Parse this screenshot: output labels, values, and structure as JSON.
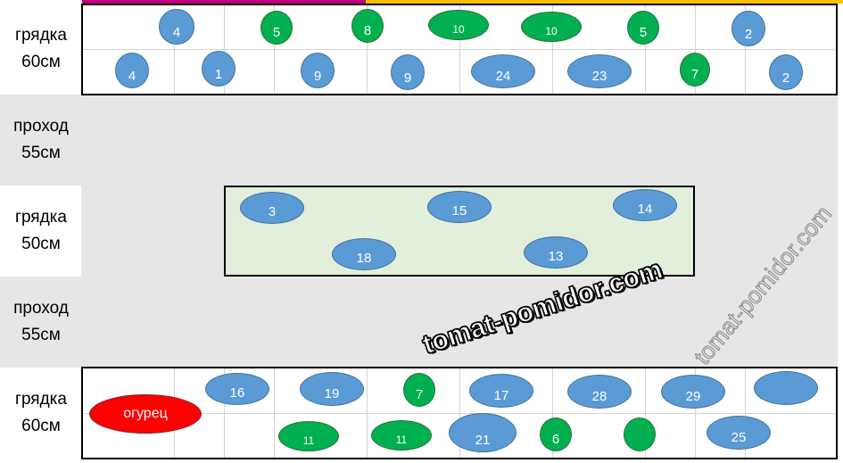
{
  "colors": {
    "blue": "#5b9bd5",
    "green": "#00b050",
    "red": "#ff0000",
    "bar_left": "#c0007a",
    "bar_right": "#ffc000",
    "inner_bed": "#e2efda",
    "path": "#e6e6e6"
  },
  "rows": [
    {
      "label": "грядка\n60см",
      "type": "bed"
    },
    {
      "label": "проход\n55см",
      "type": "path"
    },
    {
      "label": "грядка\n50см",
      "type": "bed"
    },
    {
      "label": "проход\n55см",
      "type": "path"
    },
    {
      "label": "грядка\n60см",
      "type": "bed"
    }
  ],
  "plants": [
    {
      "label": "4",
      "color": "blue"
    },
    {
      "label": "5",
      "color": "green"
    },
    {
      "label": "8",
      "color": "green"
    },
    {
      "label": "10",
      "color": "green"
    },
    {
      "label": "10",
      "color": "green"
    },
    {
      "label": "5",
      "color": "green"
    },
    {
      "label": "2",
      "color": "blue"
    },
    {
      "label": "4",
      "color": "blue"
    },
    {
      "label": "1",
      "color": "blue"
    },
    {
      "label": "9",
      "color": "blue"
    },
    {
      "label": "9",
      "color": "blue"
    },
    {
      "label": "24",
      "color": "blue"
    },
    {
      "label": "23",
      "color": "blue"
    },
    {
      "label": "7",
      "color": "green"
    },
    {
      "label": "2",
      "color": "blue"
    },
    {
      "label": "3",
      "color": "blue"
    },
    {
      "label": "15",
      "color": "blue"
    },
    {
      "label": "14",
      "color": "blue"
    },
    {
      "label": "18",
      "color": "blue"
    },
    {
      "label": "13",
      "color": "blue"
    },
    {
      "label": "огурец",
      "color": "red"
    },
    {
      "label": "16",
      "color": "blue"
    },
    {
      "label": "19",
      "color": "blue"
    },
    {
      "label": "7",
      "color": "green"
    },
    {
      "label": "17",
      "color": "blue"
    },
    {
      "label": "28",
      "color": "blue"
    },
    {
      "label": "29",
      "color": "blue"
    },
    {
      "label": "",
      "color": "blue"
    },
    {
      "label": "11",
      "color": "green"
    },
    {
      "label": "11",
      "color": "green"
    },
    {
      "label": "21",
      "color": "blue"
    },
    {
      "label": "6",
      "color": "green"
    },
    {
      "label": "",
      "color": "green"
    },
    {
      "label": "25",
      "color": "blue"
    }
  ],
  "watermark": "tomat-pomidor.com"
}
